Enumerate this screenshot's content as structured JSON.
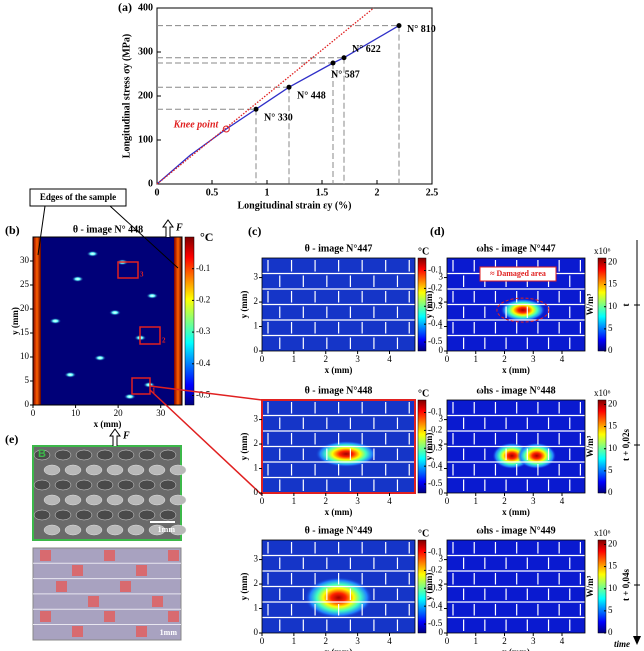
{
  "chart_data": {
    "type": "line",
    "label": "(a)",
    "xlabel": "Longitudinal strain εy (%)",
    "ylabel": "Longitudinal stress σy (MPa)",
    "xlim": [
      0,
      2.5
    ],
    "ylim": [
      0,
      400
    ],
    "xticks": [
      0,
      0.5,
      1,
      1.5,
      2,
      2.5
    ],
    "yticks": [
      0,
      100,
      200,
      300,
      400
    ],
    "series": [
      {
        "color": "#3030c8",
        "style": "solid",
        "x": [
          0,
          0.3,
          0.63,
          0.9,
          1.2,
          1.6,
          1.7,
          2.2
        ],
        "values": [
          0,
          65,
          125,
          170,
          220,
          275,
          287,
          360
        ]
      },
      {
        "color": "#e02020",
        "style": "dotted",
        "x": [
          0,
          1.97
        ],
        "values": [
          0,
          400
        ]
      }
    ],
    "points": {
      "color": "#000000",
      "x": [
        0.9,
        1.2,
        1.6,
        1.7,
        2.2
      ],
      "values": [
        170,
        220,
        275,
        287,
        360
      ],
      "labels": [
        "N° 330",
        "N° 448",
        "N° 587",
        "N° 622",
        "N° 810"
      ]
    },
    "knee": {
      "label": "Knee point",
      "x": 0.63,
      "value": 125,
      "color": "#e02020"
    }
  },
  "panels": {
    "b": {
      "label": "(b)",
      "title": "θ - image N° 448",
      "unit": "°C",
      "force": "F",
      "xlabel": "x (mm)",
      "ylabel": "y (mm)",
      "xlim": [
        0,
        35
      ],
      "ylim": [
        0,
        35
      ],
      "xticks": [
        0,
        10,
        20,
        30
      ],
      "yticks": [
        0,
        5,
        10,
        15,
        20,
        25,
        30
      ],
      "clim": [
        -0.53,
        0
      ],
      "cticks": [
        -0.1,
        -0.2,
        -0.3,
        -0.4,
        -0.5
      ],
      "boxes": [
        "3",
        "2",
        "1"
      ],
      "edges": "Edges of the sample"
    },
    "c": {
      "label": "(c)",
      "unit": "°C",
      "titles": [
        "θ - image N°447",
        "θ - image N°448",
        "θ - image N°449"
      ],
      "xlabel": "x (mm)",
      "ylabel": "y (mm)",
      "xlim": [
        0,
        4.8
      ],
      "ylim": [
        0,
        3.8
      ],
      "xticks": [
        0,
        1,
        2,
        3,
        4
      ],
      "yticks": [
        0,
        1,
        2,
        3
      ],
      "clim": [
        -0.55,
        -0.03
      ],
      "cticks": [
        -0.1,
        -0.2,
        -0.3,
        -0.4,
        -0.5
      ]
    },
    "d": {
      "label": "(d)",
      "scale": "x10⁶",
      "unit": "W/m³",
      "titles": [
        "ωhs - image N°447",
        "ωhs - image N°448",
        "ωhs - image N°449"
      ],
      "xlabel": "x (mm)",
      "ylabel": "y (mm)",
      "xlim": [
        0,
        4.8
      ],
      "ylim": [
        0,
        3.8
      ],
      "xticks": [
        0,
        1,
        2,
        3,
        4
      ],
      "yticks": [
        0,
        1,
        2,
        3
      ],
      "clim": [
        0,
        21
      ],
      "cticks": [
        0,
        5,
        10,
        15,
        20
      ],
      "annotation": "≈ Damaged area"
    },
    "e": {
      "label": "(e)",
      "force": "F",
      "inset": "B",
      "scale_top": "1mm",
      "scale_bottom": "1mm"
    },
    "timeline": {
      "steps": [
        "t",
        "t + 0,02s",
        "t + 0,04s"
      ],
      "axis": "time"
    }
  }
}
